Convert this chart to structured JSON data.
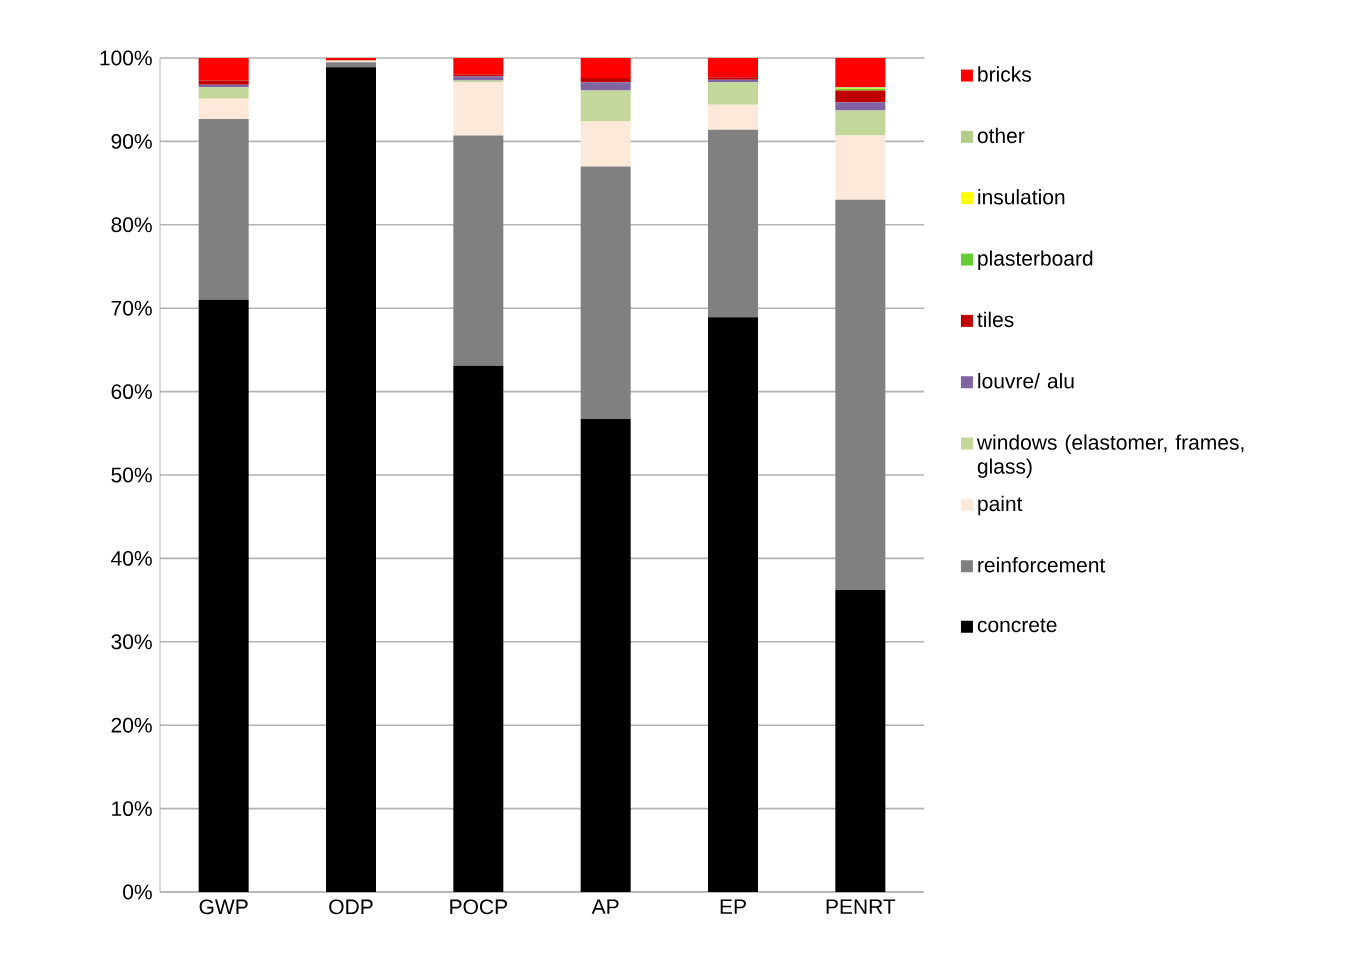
{
  "chart_data": {
    "type": "bar",
    "stacked": true,
    "categories": [
      "GWP",
      "ODP",
      "POCP",
      "AP",
      "EP",
      "PENRT"
    ],
    "series": [
      {
        "name": "concrete",
        "color": "#000000",
        "values": [
          71,
          98.9,
          63.1,
          56.7,
          68.9,
          36.2
        ]
      },
      {
        "name": "reinforcement",
        "color": "#808080",
        "values": [
          21.7,
          0.6,
          27.6,
          30.3,
          22.5,
          46.8
        ]
      },
      {
        "name": "paint",
        "color": "#fde9d9",
        "values": [
          2.4,
          0.1,
          6.4,
          5.4,
          3.0,
          7.7
        ]
      },
      {
        "name": "windows (elastomer, frames, glass)",
        "color": "#c4d79b",
        "values": [
          1.4,
          0.1,
          0.2,
          3.7,
          2.7,
          3.0
        ]
      },
      {
        "name": "louvre/ alu",
        "color": "#8064a2",
        "values": [
          0.3,
          0,
          0.5,
          1.0,
          0.3,
          1.0
        ]
      },
      {
        "name": "tiles",
        "color": "#c00000",
        "values": [
          0.5,
          0,
          0.2,
          0.5,
          0.3,
          1.4
        ]
      },
      {
        "name": "plasterboard",
        "color": "#66cc33",
        "values": [
          0,
          0,
          0,
          0,
          0,
          0.2
        ]
      },
      {
        "name": "insulation",
        "color": "#ffff00",
        "values": [
          0,
          0,
          0,
          0,
          0,
          0.1
        ]
      },
      {
        "name": "other",
        "color": "#b3cc88",
        "values": [
          0,
          0,
          0,
          0,
          0,
          0.1
        ]
      },
      {
        "name": "bricks",
        "color": "#ff0000",
        "values": [
          2.7,
          0.3,
          2.0,
          2.4,
          2.3,
          3.5
        ]
      }
    ],
    "ylim": [
      0,
      100
    ],
    "yticks": [
      {
        "value": 0,
        "label": "0%"
      },
      {
        "value": 10,
        "label": "10%"
      },
      {
        "value": 20,
        "label": "20%"
      },
      {
        "value": 30,
        "label": "30%"
      },
      {
        "value": 40,
        "label": "40%"
      },
      {
        "value": 50,
        "label": "50%"
      },
      {
        "value": 60,
        "label": "60%"
      },
      {
        "value": 70,
        "label": "70%"
      },
      {
        "value": 80,
        "label": "80%"
      },
      {
        "value": 90,
        "label": "90%"
      },
      {
        "value": 100,
        "label": "100%"
      }
    ],
    "grid": "y",
    "legend": "right"
  }
}
